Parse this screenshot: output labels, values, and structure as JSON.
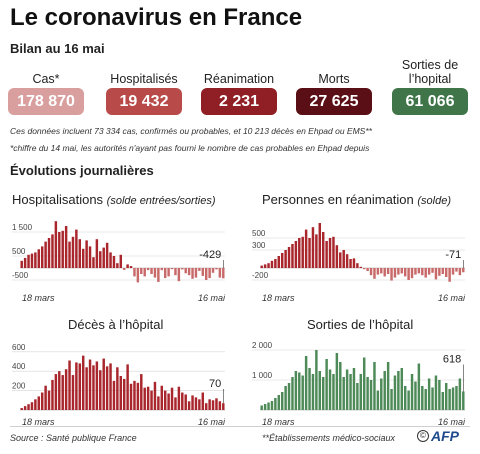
{
  "header": {
    "title": "Le coronavirus en France",
    "subtitle": "Bilan au 16 mai"
  },
  "kpis": [
    {
      "label": "Cas*",
      "value": "178 870",
      "color": "#d99f9f"
    },
    {
      "label": "Hospitalisés",
      "value": "19 432",
      "color": "#b84a4a"
    },
    {
      "label": "Réanimation",
      "value": "2 231",
      "color": "#8f1f24"
    },
    {
      "label": "Morts",
      "value": "27 625",
      "color": "#5a0e15"
    },
    {
      "label": "Sorties de l’hopital",
      "value": "61 066",
      "color": "#3f7549"
    }
  ],
  "notes": {
    "line1": "Ces données incluent 73 334 cas, confirmés ou probables, et 10 213 décès en Ehpad ou EMS**",
    "line2": "*chiffre du 14 mai, les autorités n'ayant pas fourni le nombre de cas probables en Ehpad depuis"
  },
  "section": {
    "title": "Évolutions journalières"
  },
  "charts": {
    "hosp": {
      "title": "Hospitalisations",
      "subtitle": "(solde entrées/sorties)"
    },
    "rea": {
      "title": "Personnes en réanimation",
      "subtitle": "(solde)"
    },
    "deces": {
      "title": "Décès à l’hôpital"
    },
    "sorties": {
      "title": "Sorties de l’hôpital"
    }
  },
  "footer": {
    "source": "Source : Santé publique France",
    "ems": "**Établissements médico-sociaux",
    "copyright": "©",
    "logo": "AFP"
  },
  "chart_data": [
    {
      "id": "hosp",
      "type": "bar",
      "title": "Hospitalisations",
      "subtitle": "(solde entrées/sorties)",
      "color_pos": "#a8262c",
      "color_neg": "#c96a6a",
      "x_labels": [
        "18 mars",
        "16 mai"
      ],
      "yticks": [
        1500,
        500,
        -500
      ],
      "ytick_labels": [
        "1 500",
        "500",
        "-500"
      ],
      "ylim": [
        -750,
        2000
      ],
      "last_label": "-429",
      "values": [
        300,
        420,
        550,
        600,
        650,
        780,
        900,
        1100,
        1250,
        1400,
        1950,
        1500,
        1550,
        1750,
        1100,
        1300,
        1600,
        1200,
        800,
        1150,
        900,
        450,
        1200,
        700,
        850,
        1050,
        650,
        500,
        200,
        550,
        -80,
        150,
        80,
        -350,
        -600,
        -250,
        -350,
        -90,
        -250,
        -400,
        -580,
        -90,
        -420,
        -350,
        -50,
        -300,
        -550,
        -60,
        -220,
        -300,
        -450,
        -400,
        -120,
        -330,
        -500,
        -420,
        -200,
        -60,
        -400,
        -429
      ]
    },
    {
      "id": "rea",
      "type": "bar",
      "title": "Personnes en réanimation",
      "subtitle": "(solde)",
      "color_pos": "#a8262c",
      "color_neg": "#c96a6a",
      "x_labels": [
        "18 mars",
        "16 mai"
      ],
      "yticks": [
        500,
        300,
        -200
      ],
      "ytick_labels": [
        "500",
        "300",
        "-200"
      ],
      "ylim": [
        -300,
        800
      ],
      "last_label": "-71",
      "values": [
        40,
        60,
        80,
        120,
        150,
        200,
        250,
        300,
        350,
        400,
        450,
        500,
        520,
        640,
        500,
        680,
        560,
        750,
        600,
        450,
        500,
        520,
        380,
        260,
        300,
        230,
        150,
        160,
        80,
        20,
        -20,
        -50,
        -120,
        -180,
        -110,
        -90,
        -140,
        -100,
        -210,
        -160,
        -110,
        -90,
        -140,
        -200,
        -170,
        -110,
        -90,
        -120,
        -160,
        -110,
        -80,
        -190,
        -130,
        -100,
        -150,
        -230,
        -110,
        -60,
        -120,
        -71
      ]
    },
    {
      "id": "deces",
      "type": "bar",
      "title": "Décès à l’hôpital",
      "color_pos": "#a8262c",
      "x_labels": [
        "18 mars",
        "16 mai"
      ],
      "yticks": [
        600,
        400,
        200
      ],
      "ytick_labels": [
        "600",
        "400",
        "200"
      ],
      "ylim": [
        0,
        680
      ],
      "last_label": "70",
      "values": [
        20,
        40,
        60,
        80,
        110,
        140,
        180,
        250,
        200,
        310,
        370,
        400,
        360,
        420,
        510,
        360,
        490,
        480,
        560,
        440,
        520,
        460,
        500,
        410,
        530,
        450,
        480,
        300,
        440,
        350,
        320,
        470,
        270,
        300,
        280,
        370,
        230,
        240,
        200,
        290,
        140,
        250,
        200,
        170,
        230,
        130,
        240,
        180,
        160,
        90,
        150,
        130,
        110,
        180,
        70,
        110,
        100,
        120,
        90,
        70
      ]
    },
    {
      "id": "sorties",
      "type": "bar",
      "title": "Sorties de l’hôpital",
      "color_pos": "#4d8a58",
      "x_labels": [
        "18 mars",
        "16 mai"
      ],
      "yticks": [
        2000,
        1000
      ],
      "ytick_labels": [
        "2 000",
        "1 000"
      ],
      "ylim": [
        0,
        2200
      ],
      "last_label": "618",
      "values": [
        150,
        200,
        250,
        300,
        400,
        500,
        600,
        800,
        900,
        1100,
        1300,
        1250,
        1150,
        1800,
        1400,
        1200,
        2000,
        1300,
        1100,
        1700,
        1350,
        1200,
        1900,
        1600,
        1100,
        1350,
        1200,
        1400,
        900,
        1200,
        1750,
        1100,
        1000,
        1600,
        650,
        1050,
        1300,
        1600,
        700,
        1150,
        1300,
        1400,
        800,
        650,
        1200,
        950,
        1550,
        800,
        700,
        1050,
        750,
        1150,
        1000,
        600,
        900,
        700,
        750,
        800,
        1050,
        618
      ]
    }
  ]
}
